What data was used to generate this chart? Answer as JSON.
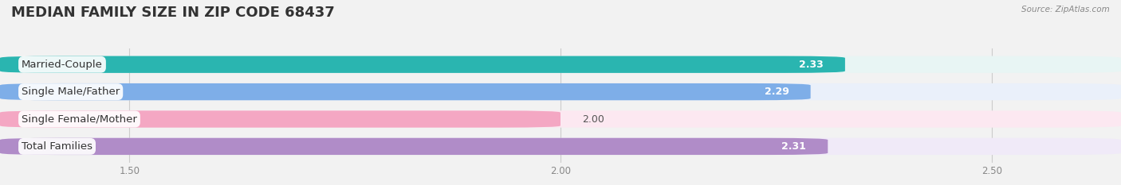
{
  "title": "MEDIAN FAMILY SIZE IN ZIP CODE 68437",
  "source": "Source: ZipAtlas.com",
  "categories": [
    "Married-Couple",
    "Single Male/Father",
    "Single Female/Mother",
    "Total Families"
  ],
  "values": [
    2.33,
    2.29,
    2.0,
    2.31
  ],
  "bar_colors": [
    "#2ab5b0",
    "#7eaee8",
    "#f4a7c3",
    "#b08cc8"
  ],
  "bar_bg_colors": [
    "#e8f5f4",
    "#eaf0fa",
    "#fce8f1",
    "#f0eaf8"
  ],
  "xlim_data": [
    1.35,
    2.65
  ],
  "xticks": [
    1.5,
    2.0,
    2.5
  ],
  "title_fontsize": 13,
  "label_fontsize": 9.5,
  "value_fontsize": 9,
  "bar_height": 0.62,
  "bar_gap": 0.15,
  "background_color": "#f2f2f2",
  "value_inside_threshold": 2.15
}
